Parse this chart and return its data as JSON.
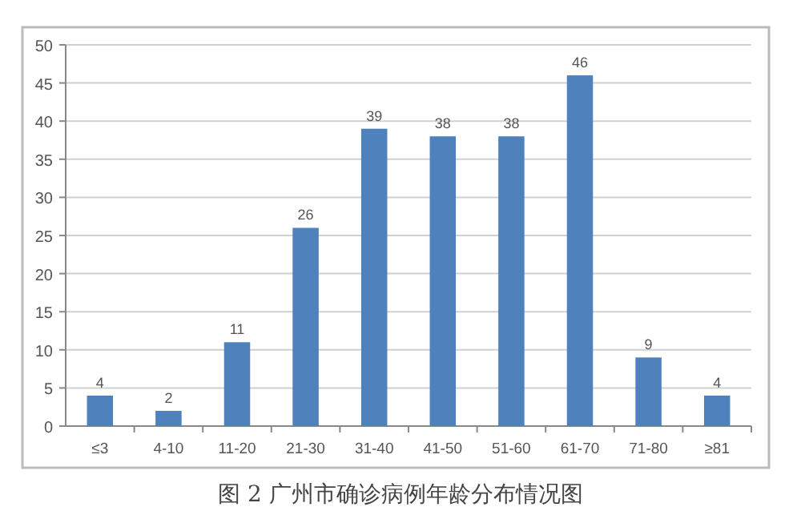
{
  "chart_data": {
    "type": "bar",
    "title": "图 2 广州市确诊病例年龄分布情况图",
    "categories": [
      "≤3",
      "4-10",
      "11-20",
      "21-30",
      "31-40",
      "41-50",
      "51-60",
      "61-70",
      "71-80",
      "≥81"
    ],
    "values": [
      4,
      2,
      11,
      26,
      39,
      38,
      38,
      46,
      9,
      4
    ],
    "color": "#4f81bd",
    "data_labels": true,
    "ylim": [
      0,
      50
    ],
    "yticks": [
      0,
      5,
      10,
      15,
      20,
      25,
      30,
      35,
      40,
      45,
      50
    ],
    "grid": "y"
  }
}
